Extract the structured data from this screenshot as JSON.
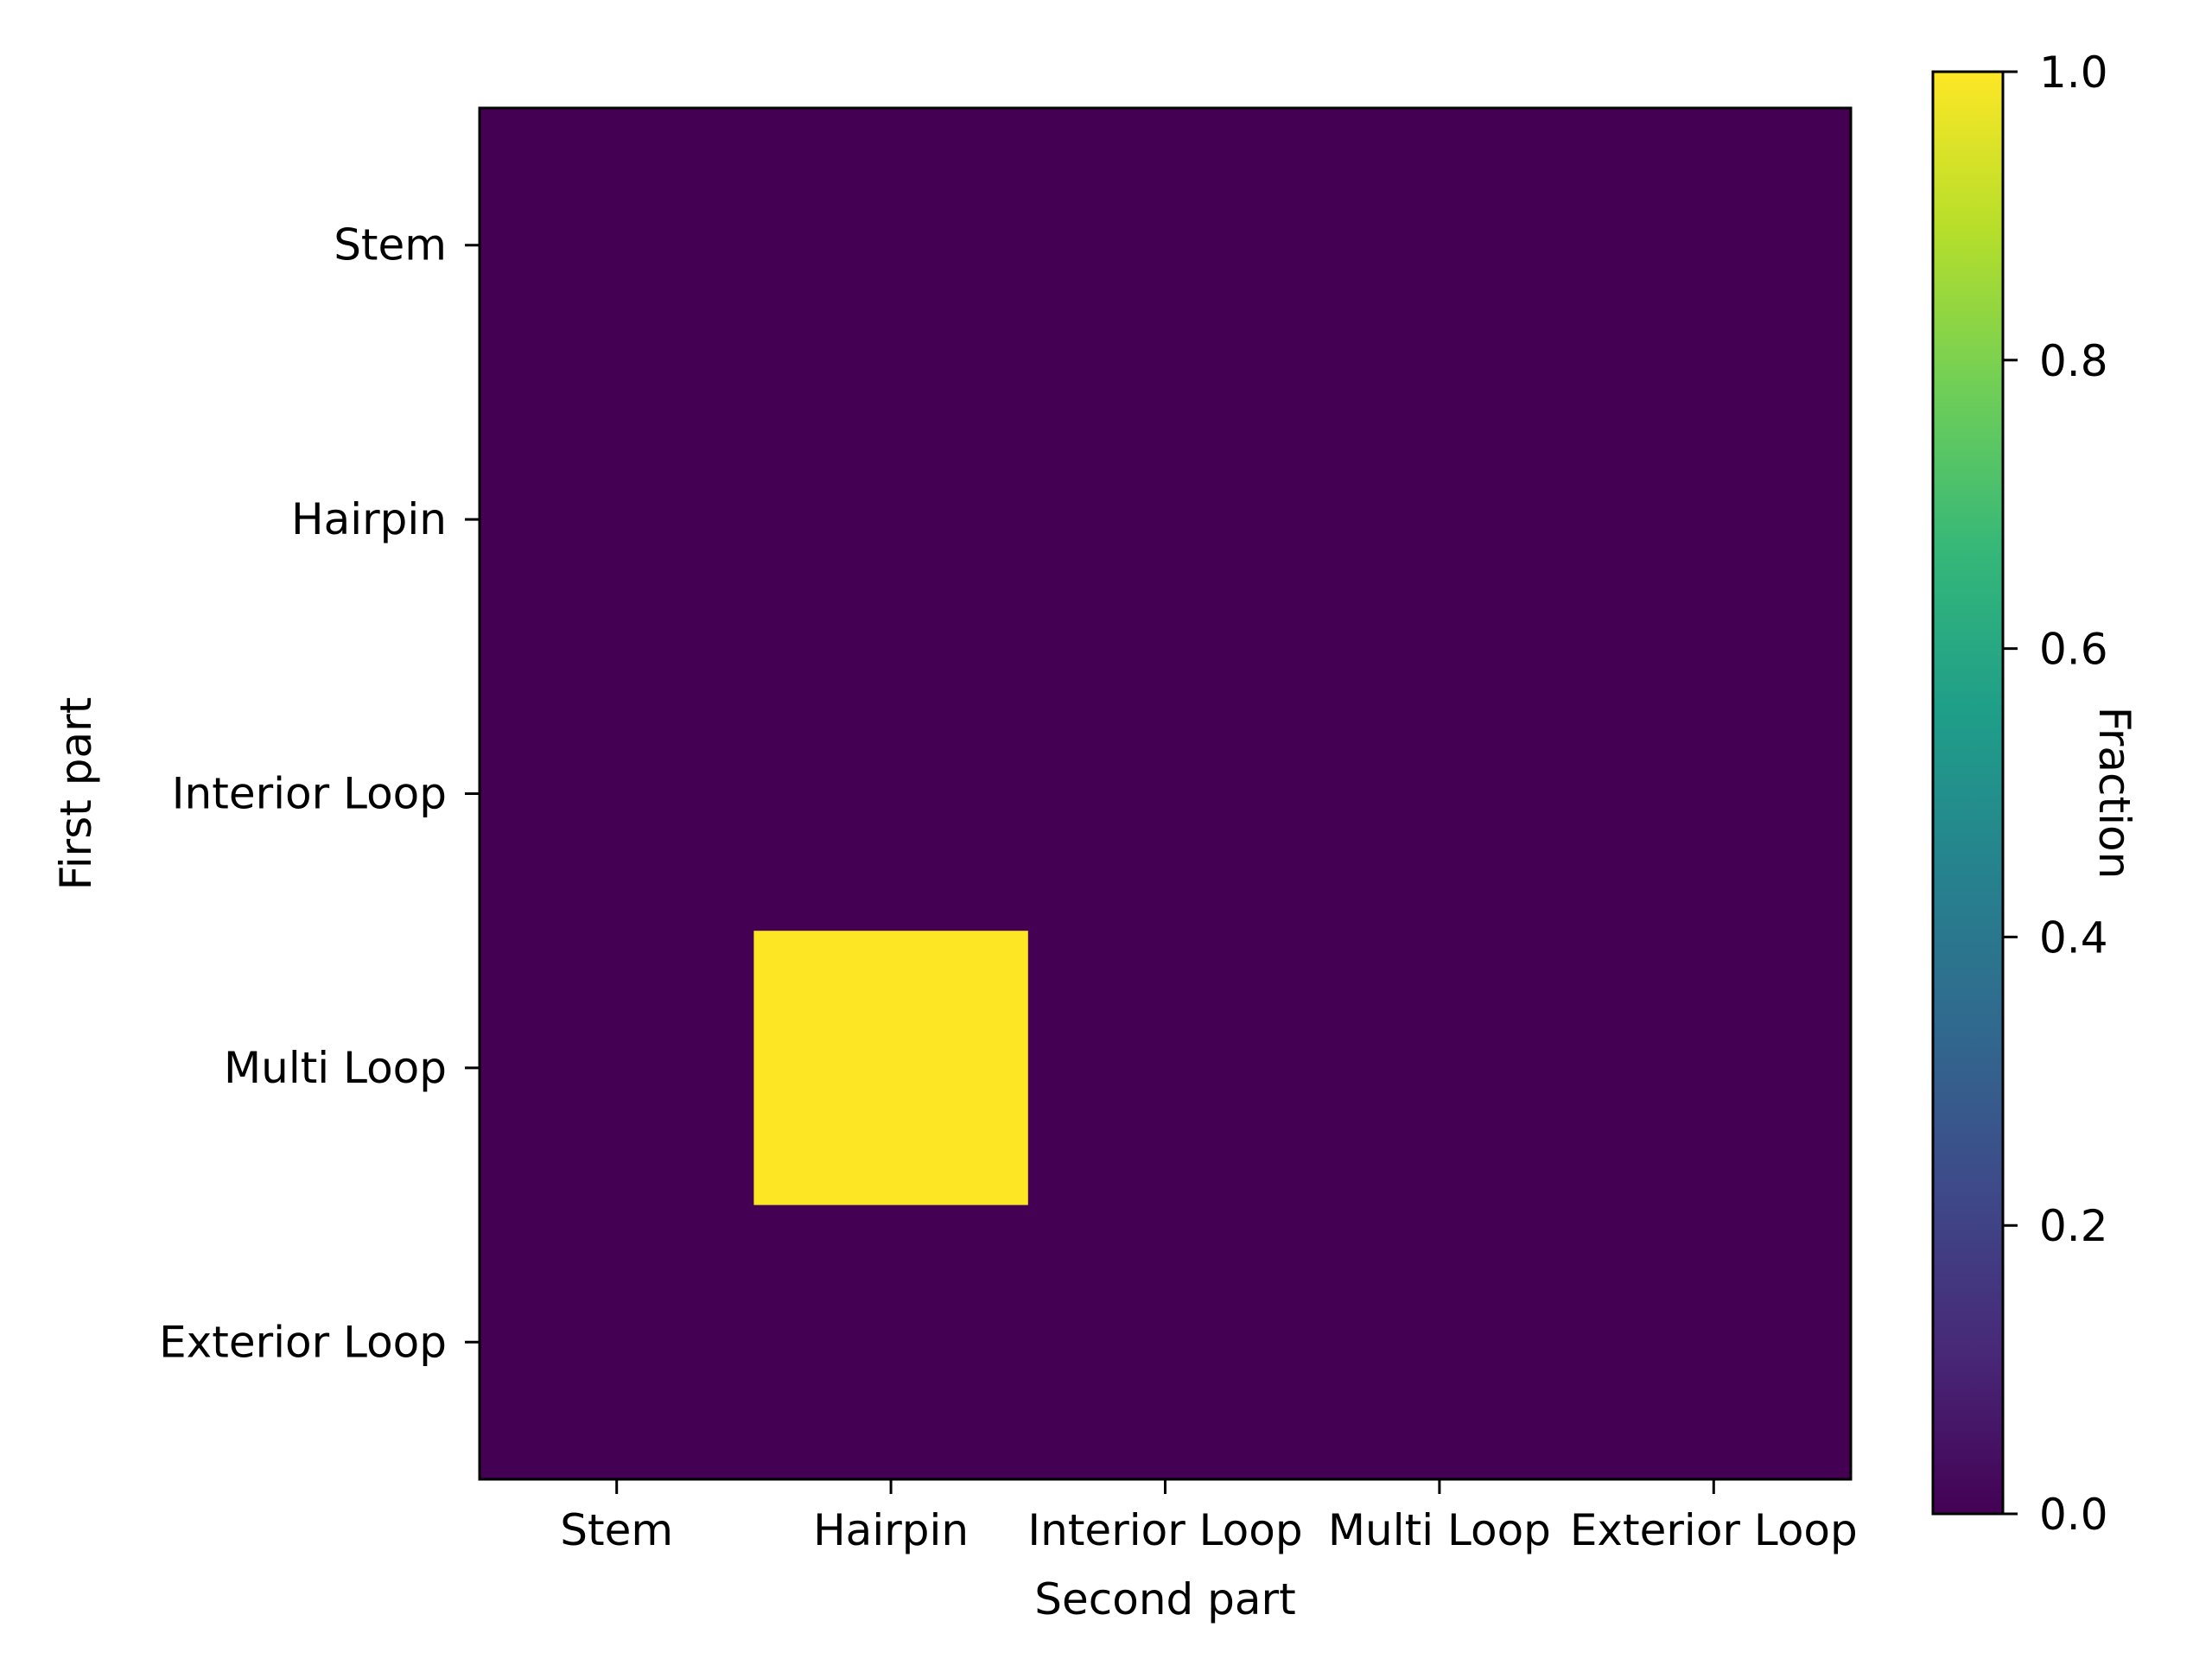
{
  "chart_data": {
    "type": "heatmap",
    "x_categories": [
      "Stem",
      "Hairpin",
      "Interior Loop",
      "Multi Loop",
      "Exterior Loop"
    ],
    "y_categories": [
      "Stem",
      "Hairpin",
      "Interior Loop",
      "Multi Loop",
      "Exterior Loop"
    ],
    "xlabel": "Second part",
    "ylabel": "First part",
    "values": [
      [
        0,
        0,
        0,
        0,
        0
      ],
      [
        0,
        0,
        0,
        0,
        0
      ],
      [
        0,
        0,
        0,
        0,
        0
      ],
      [
        0,
        1,
        0,
        0,
        0
      ],
      [
        0,
        0,
        0,
        0,
        0
      ]
    ],
    "colorbar": {
      "label": "Fraction",
      "range": [
        0.0,
        1.0
      ],
      "ticks": [
        "0.0",
        "0.2",
        "0.4",
        "0.6",
        "0.8",
        "1.0"
      ],
      "colormap": "viridis",
      "stops": [
        "#440154",
        "#482878",
        "#3e4989",
        "#31688e",
        "#26828e",
        "#1f9e89",
        "#35b779",
        "#6ece58",
        "#b5de2b",
        "#fde725"
      ]
    },
    "grid": false
  }
}
